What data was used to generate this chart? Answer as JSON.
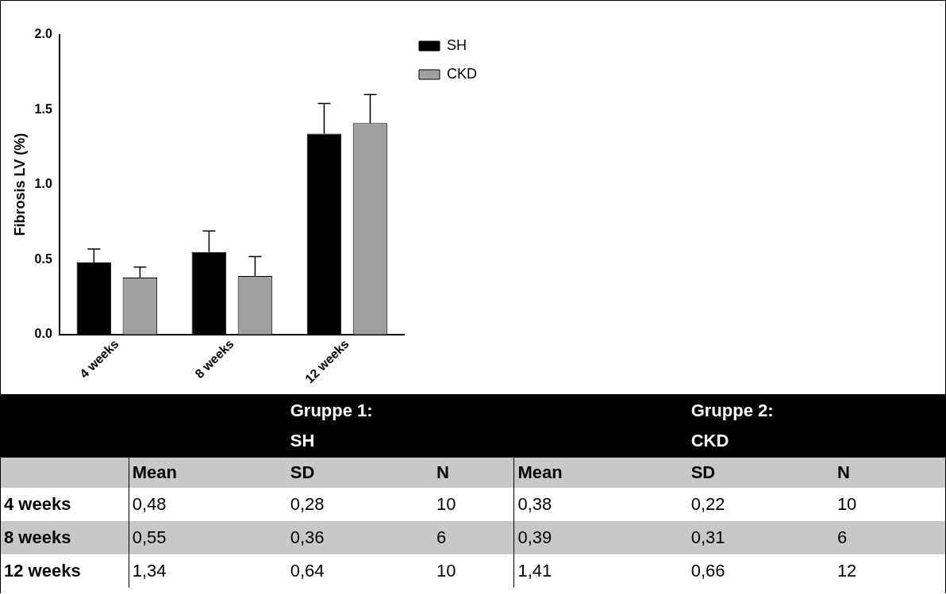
{
  "chart_data": [
    {
      "type": "bar",
      "ylabel": "Fibrosis LV (%)",
      "categories": [
        "4 weeks",
        "8 weeks",
        "12 weeks"
      ],
      "series": [
        {
          "name": "SH",
          "color": "#000000",
          "values": [
            0.48,
            0.55,
            1.34
          ],
          "errors": [
            [
              0.48,
              0.57
            ],
            [
              0.55,
              0.69
            ],
            [
              1.34,
              1.54
            ]
          ]
        },
        {
          "name": "CKD",
          "color": "#a0a0a0",
          "values": [
            0.38,
            0.39,
            1.41
          ],
          "errors": [
            [
              0.38,
              0.45
            ],
            [
              0.39,
              0.52
            ],
            [
              1.41,
              1.6
            ]
          ]
        }
      ],
      "ylim": [
        0,
        2
      ],
      "yticks": [
        {
          "value": 0,
          "label": "0.0"
        },
        {
          "value": 0.5,
          "label": "0.5"
        },
        {
          "value": 1,
          "label": "1.0"
        },
        {
          "value": 1.5,
          "label": "1.5"
        },
        {
          "value": 2,
          "label": "2.0"
        }
      ],
      "grid": false,
      "legend": "right"
    },
    {
      "type": "other",
      "annotations": [
        "Gruppe 1:",
        "SH",
        "Gruppe 2:",
        "CKD",
        "Mean",
        "SD",
        "N",
        "Mean",
        "SD",
        "N",
        "4 weeks",
        "0,48",
        "0,28",
        "10",
        "0,38",
        "0,22",
        "10",
        "8 weeks",
        "0,55",
        "0,36",
        "6",
        "0,39",
        "0,31",
        "6",
        "12 weeks",
        "1,34",
        "0,64",
        "10",
        "1,41",
        "0,66",
        "12"
      ]
    }
  ]
}
